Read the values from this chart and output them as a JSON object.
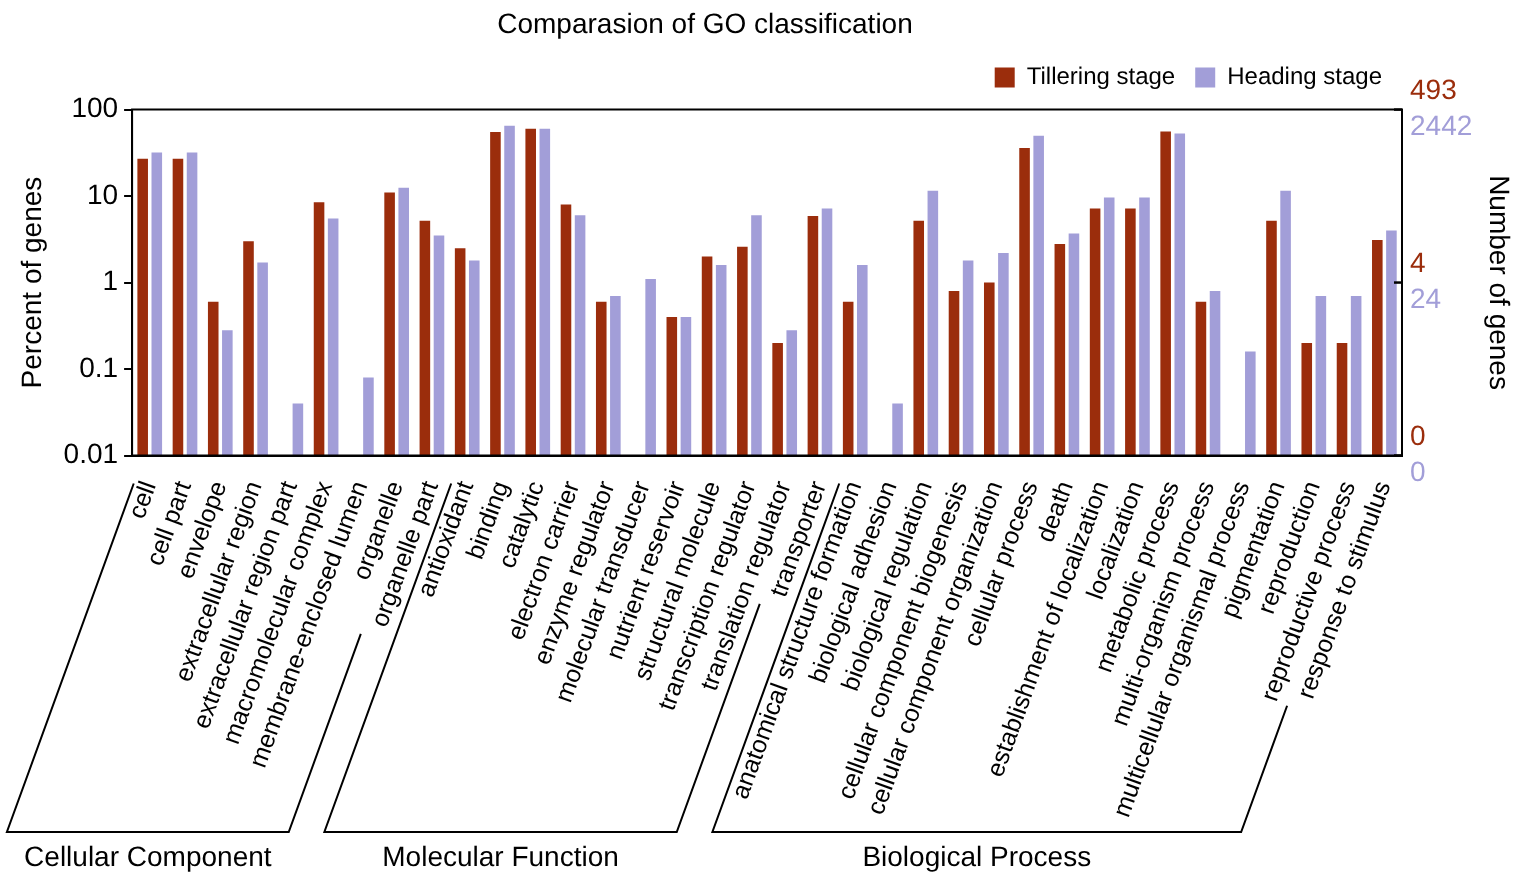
{
  "chart_data": {
    "type": "bar",
    "title": "Comparasion of GO classification",
    "ylabel": "Percent of genes",
    "y2label": "Number of genes",
    "categories": [
      "cell",
      "cell part",
      "envelope",
      "extracellular region",
      "extracellular region part",
      "macromolecular complex",
      "membrane-enclosed lumen",
      "organelle",
      "organelle part",
      "antioxidant",
      "binding",
      "catalytic",
      "electron carrier",
      "enzyme regulator",
      "molecular transducer",
      "nutrient reservoir",
      "structural molecule",
      "transcription regulator",
      "translation regulator",
      "transporter",
      "anatomical structure formation",
      "biological adhesion",
      "biological regulation",
      "cellular component biogenesis",
      "cellular component organization",
      "cellular process",
      "death",
      "establishment of localization",
      "localization",
      "metabolic process",
      "multi-organism process",
      "multicellular organismal process",
      "pigmentation",
      "reproduction",
      "reproductive process",
      "response to stimulus"
    ],
    "series": [
      {
        "name": "Tillering stage",
        "color": "#9b2d0c",
        "values": [
          27,
          27,
          0.6,
          3,
          null,
          8.5,
          null,
          11,
          5.2,
          2.5,
          55,
          60,
          8,
          0.6,
          null,
          0.4,
          2,
          2.6,
          0.2,
          5.9,
          0.6,
          null,
          5.2,
          0.8,
          1,
          36,
          2.8,
          7.2,
          7.2,
          56,
          0.6,
          null,
          5.2,
          0.2,
          0.2,
          3.1
        ]
      },
      {
        "name": "Heading stage",
        "color": "#a29ed8",
        "values": [
          32,
          32,
          0.28,
          1.7,
          0.04,
          5.5,
          0.08,
          12.5,
          3.5,
          1.8,
          65,
          60,
          6,
          0.7,
          1.1,
          0.4,
          1.6,
          6,
          0.28,
          7.2,
          1.6,
          0.04,
          11.5,
          1.8,
          2.2,
          50,
          3.7,
          9.6,
          9.6,
          53,
          0.8,
          0.16,
          11.5,
          0.7,
          0.7,
          4
        ]
      }
    ],
    "log": true,
    "ylim": [
      0.01,
      100
    ],
    "yticks": [
      0.01,
      0.1,
      1,
      10,
      100
    ],
    "legend": "top right",
    "annotations": [
      "Cellular Component",
      "Molecular Function",
      "Biological Process",
      "493",
      "2442",
      "4",
      "24",
      "0",
      "0"
    ]
  }
}
